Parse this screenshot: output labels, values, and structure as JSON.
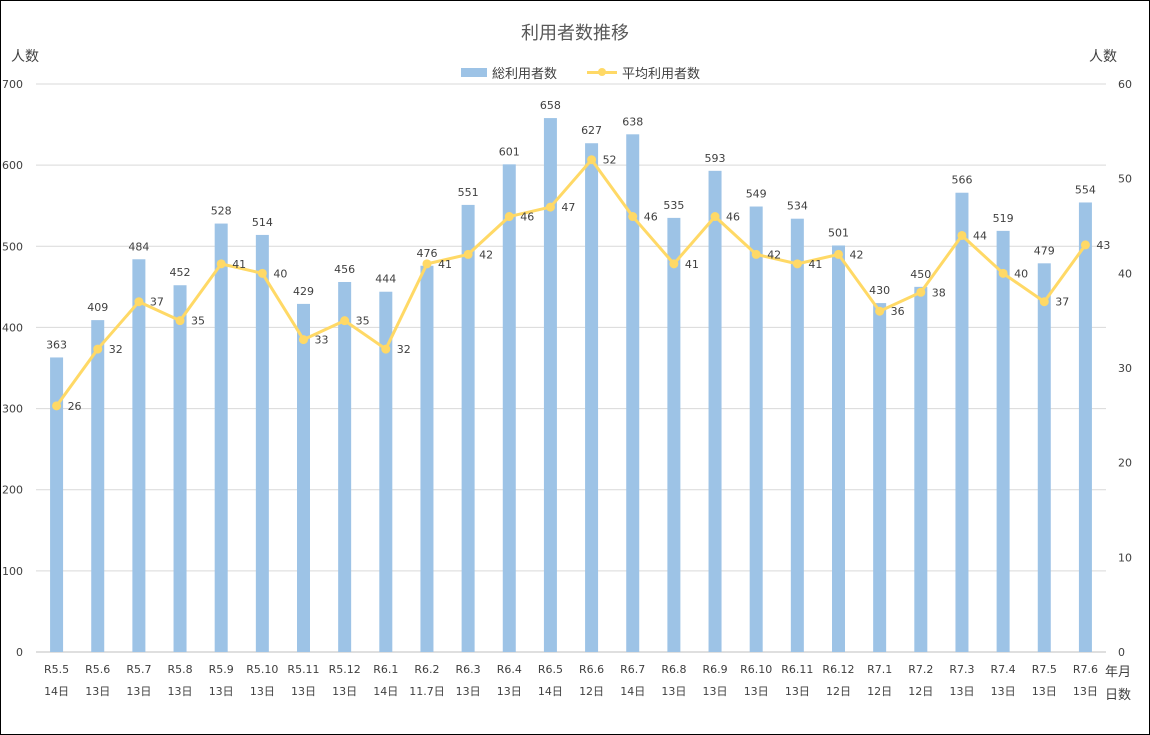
{
  "chart_data": {
    "type": "bar+line",
    "title": "利用者数推移",
    "ylabel_left": "人数",
    "ylabel_right": "人数",
    "x_unit_line1": "年月",
    "x_unit_line2": "日数",
    "ylim_left": [
      0,
      700
    ],
    "yticks_left": [
      0,
      100,
      200,
      300,
      400,
      500,
      600,
      700
    ],
    "ylim_right": [
      0,
      60
    ],
    "yticks_right": [
      0,
      10,
      20,
      30,
      40,
      50,
      60
    ],
    "grid": true,
    "legend_position": "top-center",
    "categories": [
      "R5.5",
      "R5.6",
      "R5.7",
      "R5.8",
      "R5.9",
      "R5.10",
      "R5.11",
      "R5.12",
      "R6.1",
      "R6.2",
      "R6.3",
      "R6.4",
      "R6.5",
      "R6.6",
      "R6.7",
      "R6.8",
      "R6.9",
      "R6.10",
      "R6.11",
      "R6.12",
      "R7.1",
      "R7.2",
      "R7.3",
      "R7.4",
      "R7.5",
      "R7.6"
    ],
    "days": [
      "14日",
      "13日",
      "13日",
      "13日",
      "13日",
      "13日",
      "13日",
      "13日",
      "14日",
      "11.7日",
      "13日",
      "13日",
      "14日",
      "12日",
      "14日",
      "13日",
      "13日",
      "13日",
      "13日",
      "12日",
      "12日",
      "12日",
      "13日",
      "13日",
      "13日",
      "13日"
    ],
    "series": [
      {
        "name": "総利用者数",
        "type": "bar",
        "axis": "left",
        "color": "#9DC3E6",
        "values": [
          363,
          409,
          484,
          452,
          528,
          514,
          429,
          456,
          444,
          476,
          551,
          601,
          658,
          627,
          638,
          535,
          593,
          549,
          534,
          501,
          430,
          450,
          566,
          519,
          479,
          554
        ]
      },
      {
        "name": "平均利用者数",
        "type": "line",
        "axis": "right",
        "color": "#FFD966",
        "values": [
          26,
          32,
          37,
          35,
          41,
          40,
          33,
          35,
          32,
          41,
          42,
          46,
          47,
          52,
          46,
          41,
          46,
          42,
          41,
          42,
          36,
          38,
          44,
          40,
          37,
          43
        ]
      }
    ]
  }
}
